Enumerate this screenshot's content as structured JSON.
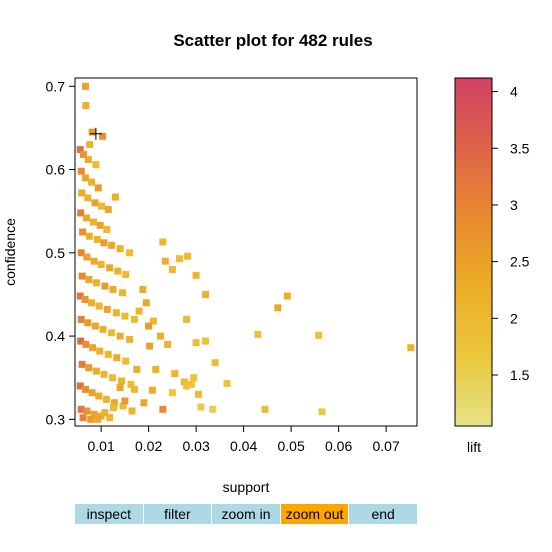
{
  "chart_data": {
    "type": "scatter",
    "title": "Scatter plot for 482 rules",
    "xlabel": "support",
    "ylabel": "confidence",
    "xlim": [
      0.0045,
      0.0765
    ],
    "ylim": [
      0.292,
      0.71
    ],
    "xticks": [
      0.01,
      0.02,
      0.03,
      0.04,
      0.05,
      0.06,
      0.07
    ],
    "xtick_labels": [
      "0.01",
      "0.02",
      "0.03",
      "0.04",
      "0.05",
      "0.06",
      "0.07"
    ],
    "yticks": [
      0.3,
      0.4,
      0.5,
      0.6,
      0.7
    ],
    "ytick_labels": [
      "0.3",
      "0.4",
      "0.5",
      "0.6",
      "0.7"
    ],
    "color_scale": {
      "label": "lift",
      "range": [
        1.05,
        4.12
      ],
      "ticks": [
        1.5,
        2,
        2.5,
        3,
        3.5,
        4
      ],
      "tick_labels": [
        "1.5",
        "2",
        "2.5",
        "3",
        "3.5",
        "4"
      ],
      "colors": [
        "#e4e385",
        "#ebc73c",
        "#ecae26",
        "#e98a30",
        "#de6348",
        "#d34164"
      ]
    },
    "cursor_marker": {
      "x": 0.0089,
      "y": 0.643
    },
    "points": [
      [
        0.0067,
        0.7,
        2.5
      ],
      [
        0.0068,
        0.677,
        2.2
      ],
      [
        0.0081,
        0.645,
        2.6
      ],
      [
        0.0103,
        0.64,
        2.8
      ],
      [
        0.0076,
        0.63,
        2.1
      ],
      [
        0.0056,
        0.624,
        3.3
      ],
      [
        0.0063,
        0.618,
        2.7
      ],
      [
        0.0073,
        0.612,
        2.3
      ],
      [
        0.0089,
        0.606,
        2.0
      ],
      [
        0.0058,
        0.598,
        2.9
      ],
      [
        0.0067,
        0.59,
        2.4
      ],
      [
        0.008,
        0.585,
        2.2
      ],
      [
        0.0094,
        0.578,
        2.6
      ],
      [
        0.0059,
        0.572,
        2.3
      ],
      [
        0.0072,
        0.566,
        2.1
      ],
      [
        0.0087,
        0.56,
        2.5
      ],
      [
        0.0101,
        0.556,
        2.0
      ],
      [
        0.0115,
        0.552,
        2.4
      ],
      [
        0.013,
        0.567,
        2.2
      ],
      [
        0.0057,
        0.548,
        3.1
      ],
      [
        0.0069,
        0.542,
        2.4
      ],
      [
        0.0084,
        0.537,
        2.2
      ],
      [
        0.0098,
        0.533,
        2.5
      ],
      [
        0.0112,
        0.528,
        2.0
      ],
      [
        0.0061,
        0.525,
        2.8
      ],
      [
        0.0075,
        0.52,
        2.3
      ],
      [
        0.0092,
        0.516,
        2.1
      ],
      [
        0.0106,
        0.512,
        2.6
      ],
      [
        0.0122,
        0.509,
        2.4
      ],
      [
        0.014,
        0.505,
        2.2
      ],
      [
        0.016,
        0.5,
        2.0
      ],
      [
        0.0058,
        0.5,
        3.0
      ],
      [
        0.007,
        0.495,
        2.5
      ],
      [
        0.0085,
        0.49,
        2.3
      ],
      [
        0.01,
        0.486,
        2.1
      ],
      [
        0.0118,
        0.482,
        2.4
      ],
      [
        0.0135,
        0.478,
        2.2
      ],
      [
        0.0152,
        0.474,
        2.0
      ],
      [
        0.006,
        0.472,
        2.9
      ],
      [
        0.0074,
        0.468,
        2.4
      ],
      [
        0.009,
        0.464,
        2.2
      ],
      [
        0.0108,
        0.46,
        2.6
      ],
      [
        0.0125,
        0.456,
        2.3
      ],
      [
        0.0145,
        0.452,
        2.1
      ],
      [
        0.0056,
        0.448,
        3.2
      ],
      [
        0.0066,
        0.444,
        2.7
      ],
      [
        0.008,
        0.44,
        2.3
      ],
      [
        0.0096,
        0.436,
        2.1
      ],
      [
        0.0113,
        0.432,
        2.5
      ],
      [
        0.0132,
        0.428,
        2.2
      ],
      [
        0.015,
        0.424,
        2.0
      ],
      [
        0.017,
        0.42,
        1.9
      ],
      [
        0.0058,
        0.42,
        3.0
      ],
      [
        0.0072,
        0.416,
        2.6
      ],
      [
        0.0088,
        0.412,
        2.4
      ],
      [
        0.0104,
        0.408,
        2.2
      ],
      [
        0.0122,
        0.404,
        2.0
      ],
      [
        0.014,
        0.4,
        2.3
      ],
      [
        0.016,
        0.396,
        2.1
      ],
      [
        0.0057,
        0.394,
        3.4
      ],
      [
        0.0068,
        0.39,
        2.8
      ],
      [
        0.0082,
        0.386,
        2.4
      ],
      [
        0.0097,
        0.382,
        2.2
      ],
      [
        0.0115,
        0.378,
        2.0
      ],
      [
        0.0133,
        0.374,
        2.3
      ],
      [
        0.0152,
        0.37,
        1.9
      ],
      [
        0.006,
        0.366,
        3.1
      ],
      [
        0.0074,
        0.362,
        2.6
      ],
      [
        0.009,
        0.358,
        2.3
      ],
      [
        0.0106,
        0.354,
        2.1
      ],
      [
        0.0124,
        0.35,
        2.0
      ],
      [
        0.0143,
        0.346,
        2.2
      ],
      [
        0.0163,
        0.342,
        1.9
      ],
      [
        0.0056,
        0.34,
        3.3
      ],
      [
        0.0067,
        0.336,
        2.8
      ],
      [
        0.0081,
        0.332,
        2.5
      ],
      [
        0.0095,
        0.328,
        2.3
      ],
      [
        0.0111,
        0.324,
        2.1
      ],
      [
        0.0128,
        0.32,
        2.4
      ],
      [
        0.0146,
        0.316,
        2.0
      ],
      [
        0.0058,
        0.312,
        3.2
      ],
      [
        0.007,
        0.31,
        2.7
      ],
      [
        0.0085,
        0.306,
        2.5
      ],
      [
        0.01,
        0.304,
        2.3
      ],
      [
        0.0118,
        0.302,
        2.1
      ],
      [
        0.0062,
        0.302,
        3.0
      ],
      [
        0.0078,
        0.3,
        2.6
      ],
      [
        0.0093,
        0.3,
        2.4
      ],
      [
        0.0108,
        0.308,
        2.2
      ],
      [
        0.0126,
        0.314,
        2.0
      ],
      [
        0.018,
        0.43,
        2.1
      ],
      [
        0.0195,
        0.44,
        2.4
      ],
      [
        0.021,
        0.418,
        2.0
      ],
      [
        0.0225,
        0.4,
        2.2
      ],
      [
        0.024,
        0.39,
        2.1
      ],
      [
        0.023,
        0.513,
        2.1
      ],
      [
        0.0235,
        0.49,
        2.2
      ],
      [
        0.025,
        0.48,
        2.0
      ],
      [
        0.0265,
        0.493,
        1.9
      ],
      [
        0.0282,
        0.496,
        2.0
      ],
      [
        0.03,
        0.473,
        2.1
      ],
      [
        0.032,
        0.45,
        2.2
      ],
      [
        0.028,
        0.42,
        2.0
      ],
      [
        0.03,
        0.392,
        1.9
      ],
      [
        0.032,
        0.394,
        1.8
      ],
      [
        0.034,
        0.368,
        1.9
      ],
      [
        0.0295,
        0.35,
        1.8
      ],
      [
        0.0305,
        0.33,
        1.9
      ],
      [
        0.0275,
        0.345,
        2.0
      ],
      [
        0.0255,
        0.355,
        2.1
      ],
      [
        0.025,
        0.332,
        1.7
      ],
      [
        0.023,
        0.312,
        2.9
      ],
      [
        0.028,
        0.34,
        1.8
      ],
      [
        0.029,
        0.342,
        1.7
      ],
      [
        0.031,
        0.315,
        1.6
      ],
      [
        0.0335,
        0.312,
        1.5
      ],
      [
        0.0365,
        0.343,
        1.7
      ],
      [
        0.043,
        0.402,
        1.8
      ],
      [
        0.0445,
        0.312,
        1.9
      ],
      [
        0.0472,
        0.434,
        2.4
      ],
      [
        0.0492,
        0.448,
        2.2
      ],
      [
        0.0558,
        0.401,
        1.8
      ],
      [
        0.0565,
        0.309,
        1.6
      ],
      [
        0.0752,
        0.386,
        2.2
      ],
      [
        0.0202,
        0.388,
        2.5
      ],
      [
        0.0215,
        0.36,
        2.2
      ],
      [
        0.0208,
        0.335,
        2.3
      ],
      [
        0.019,
        0.32,
        2.4
      ],
      [
        0.017,
        0.336,
        2.0
      ],
      [
        0.0175,
        0.36,
        2.2
      ],
      [
        0.015,
        0.322,
        2.6
      ],
      [
        0.014,
        0.338,
        2.4
      ],
      [
        0.0165,
        0.31,
        2.1
      ],
      [
        0.02,
        0.412,
        2.6
      ],
      [
        0.0188,
        0.456,
        2.3
      ]
    ]
  },
  "toolbar": {
    "items": [
      {
        "label": "inspect",
        "bg": "#add8e6"
      },
      {
        "label": "filter",
        "bg": "#add8e6"
      },
      {
        "label": "zoom in",
        "bg": "#add8e6"
      },
      {
        "label": "zoom out",
        "bg": "#ffa500"
      },
      {
        "label": "end",
        "bg": "#add8e6"
      }
    ]
  }
}
